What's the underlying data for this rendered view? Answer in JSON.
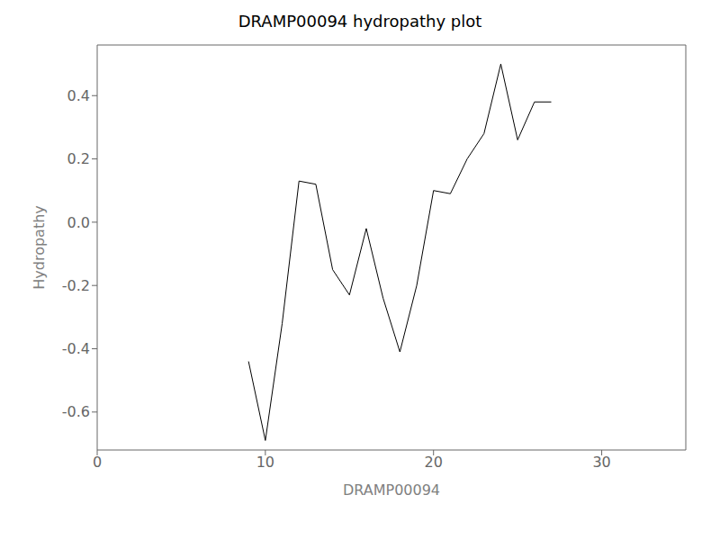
{
  "chart_data": {
    "type": "line",
    "title": "DRAMP00094 hydropathy plot",
    "xlabel": "DRAMP00094",
    "ylabel": "Hydropathy",
    "x": [
      9.0,
      10.0,
      11.0,
      12.0,
      13.0,
      14.0,
      15.0,
      16.0,
      17.0,
      18.0,
      19.0,
      20.0,
      21.0,
      22.0,
      23.0,
      24.0,
      25.0,
      26.0,
      27.0
    ],
    "values": [
      -0.44,
      -0.69,
      -0.32,
      0.13,
      0.12,
      -0.15,
      -0.23,
      -0.02,
      -0.24,
      -0.41,
      -0.2,
      0.1,
      0.09,
      0.2,
      0.28,
      0.5,
      0.26,
      0.38,
      0.38
    ],
    "color": "black",
    "xlim": [
      0,
      35
    ],
    "ylim": [
      -0.72,
      0.56
    ],
    "xticks": [
      0,
      10,
      20,
      30
    ],
    "yticks": [
      -0.6,
      -0.4,
      -0.2,
      {
        "value": 0.0,
        "label": "0.0"
      },
      0.2,
      0.4
    ],
    "grid": false
  }
}
